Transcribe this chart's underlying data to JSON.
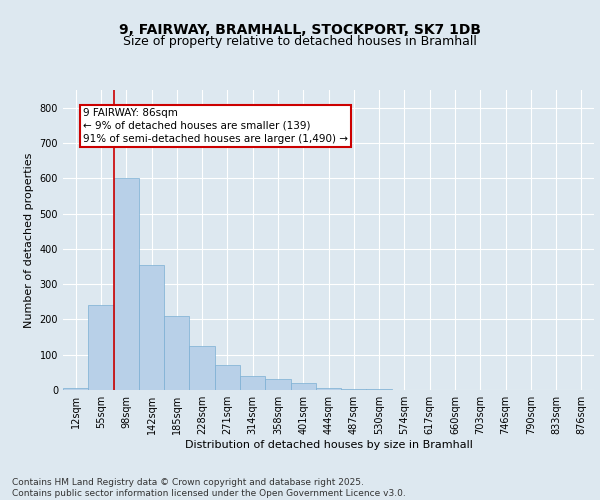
{
  "title_line1": "9, FAIRWAY, BRAMHALL, STOCKPORT, SK7 1DB",
  "title_line2": "Size of property relative to detached houses in Bramhall",
  "xlabel": "Distribution of detached houses by size in Bramhall",
  "ylabel": "Number of detached properties",
  "bar_color": "#b8d0e8",
  "bar_edge_color": "#7aafd4",
  "categories": [
    "12sqm",
    "55sqm",
    "98sqm",
    "142sqm",
    "185sqm",
    "228sqm",
    "271sqm",
    "314sqm",
    "358sqm",
    "401sqm",
    "444sqm",
    "487sqm",
    "530sqm",
    "574sqm",
    "617sqm",
    "660sqm",
    "703sqm",
    "746sqm",
    "790sqm",
    "833sqm",
    "876sqm"
  ],
  "values": [
    5,
    240,
    600,
    355,
    210,
    125,
    70,
    40,
    30,
    20,
    5,
    3,
    3,
    0,
    0,
    0,
    0,
    0,
    0,
    0,
    0
  ],
  "ylim": [
    0,
    850
  ],
  "yticks": [
    0,
    100,
    200,
    300,
    400,
    500,
    600,
    700,
    800
  ],
  "vline_x": 1.5,
  "vline_color": "#cc0000",
  "annotation_box_text": "9 FAIRWAY: 86sqm\n← 9% of detached houses are smaller (139)\n91% of semi-detached houses are larger (1,490) →",
  "box_color": "#ffffff",
  "box_edge_color": "#cc0000",
  "footer_text": "Contains HM Land Registry data © Crown copyright and database right 2025.\nContains public sector information licensed under the Open Government Licence v3.0.",
  "background_color": "#dde8f0",
  "plot_bg_color": "#dde8f0",
  "grid_color": "#ffffff",
  "title_fontsize": 10,
  "subtitle_fontsize": 9,
  "axis_label_fontsize": 8,
  "tick_fontsize": 7,
  "annotation_fontsize": 7.5,
  "footer_fontsize": 6.5
}
